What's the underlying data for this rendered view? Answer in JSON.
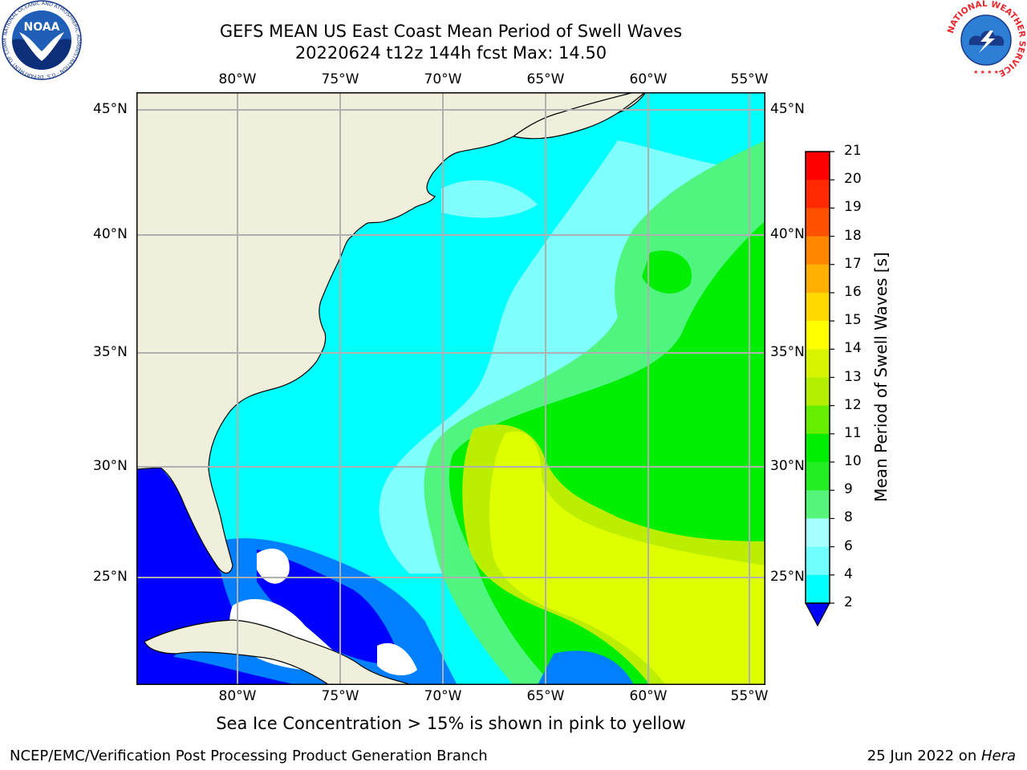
{
  "header": {
    "title_line1": "GEFS MEAN US East Coast Mean Period of Swell Waves",
    "title_line2": "20220624 t12z 144h fcst   Max: 14.50"
  },
  "map": {
    "lon_ticks": [
      "80°W",
      "75°W",
      "70°W",
      "65°W",
      "60°W",
      "55°W"
    ],
    "lat_ticks": [
      "45°N",
      "40°N",
      "35°N",
      "30°N",
      "25°N"
    ],
    "lon_range": [
      -85,
      -54
    ],
    "lat_range": [
      20.5,
      46
    ],
    "colors": {
      "land": "#efefdc",
      "grid": "#b0b0b0",
      "coast": "#000000",
      "no_data": "#ffffff"
    },
    "regions": [
      {
        "name": "2-4s",
        "color": "#0000ff"
      },
      {
        "name": "4-6s",
        "color": "#0080ff"
      },
      {
        "name": "6-8s",
        "color": "#00ffff"
      },
      {
        "name": "8-9s",
        "color": "#80ffff"
      },
      {
        "name": "9-10s",
        "color": "#50f580"
      },
      {
        "name": "10-11s",
        "color": "#00ee00"
      },
      {
        "name": "12-13s",
        "color": "#bbee00"
      },
      {
        "name": "13-14s",
        "color": "#ddff00"
      }
    ]
  },
  "colorbar": {
    "title": "Mean Period of Swell Waves [s]",
    "labels": [
      "2",
      "4",
      "6",
      "8",
      "9",
      "10",
      "11",
      "12",
      "13",
      "14",
      "15",
      "16",
      "17",
      "18",
      "19",
      "20",
      "21"
    ],
    "colors": [
      "#0070f0",
      "#00b8ff",
      "#00ffff",
      "#70ffff",
      "#a8ffff",
      "#55f57a",
      "#22ee22",
      "#00ee00",
      "#66ee00",
      "#b5ee00",
      "#d8f400",
      "#ffff00",
      "#ffd800",
      "#ffb000",
      "#ff8800",
      "#ff5000",
      "#ff2800",
      "#ff0000"
    ],
    "under_color": "#0000ff"
  },
  "footer": {
    "note": "Sea Ice Concentration > 15% is shown in pink to yellow",
    "credit_left": "NCEP/EMC/Verification Post Processing Product Generation Branch",
    "credit_date": "25 Jun 2022 on ",
    "credit_host": "Hera"
  },
  "logos": {
    "noaa_text": "NOAA",
    "noaa_ring_text": "NATIONAL OCEANIC AND ATMOSPHERIC ADMINISTRATION · U.S. DEPARTMENT OF COMMERCE",
    "nws_ring_text": "NATIONAL WEATHER SERVICE"
  }
}
